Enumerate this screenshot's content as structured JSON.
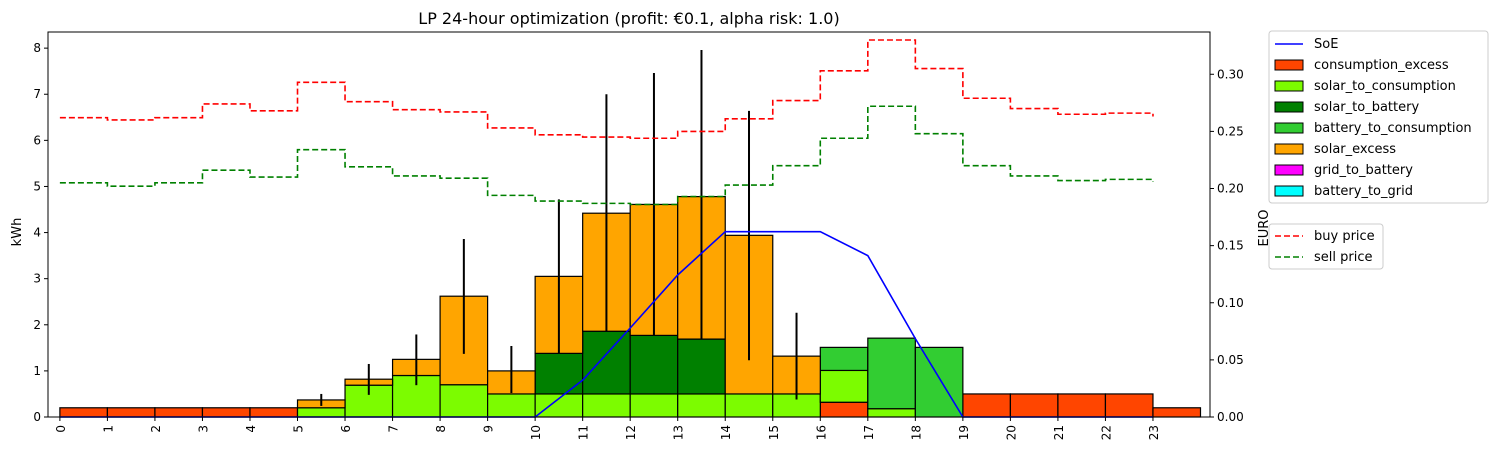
{
  "chart_data": {
    "type": "bar",
    "title": "LP 24-hour optimization (profit: €0.1, alpha risk: 1.0)",
    "xlabel": "",
    "ylabel": "kWh",
    "y2label": "EURO",
    "xlim": [
      -0.25,
      24.2
    ],
    "ylim": [
      0,
      8.35
    ],
    "y2lim": [
      0,
      0.337
    ],
    "x_ticks": [
      "0",
      "1",
      "2",
      "3",
      "4",
      "5",
      "6",
      "7",
      "8",
      "9",
      "10",
      "11",
      "12",
      "13",
      "14",
      "15",
      "16",
      "17",
      "18",
      "19",
      "20",
      "21",
      "22",
      "23"
    ],
    "y_ticks": [
      "0",
      "1",
      "2",
      "3",
      "4",
      "5",
      "6",
      "7",
      "8"
    ],
    "y2_ticks": [
      "0.00",
      "0.05",
      "0.10",
      "0.15",
      "0.20",
      "0.25",
      "0.30"
    ],
    "stacked_series": [
      {
        "name": "consumption_excess",
        "color": "#ff4500",
        "values": [
          0.2,
          0.2,
          0.2,
          0.2,
          0.2,
          0,
          0,
          0,
          0,
          0,
          0,
          0,
          0,
          0,
          0,
          0,
          0.32,
          0,
          0,
          0.5,
          0.5,
          0.5,
          0.5,
          0.2
        ]
      },
      {
        "name": "solar_to_consumption",
        "color": "#7cfc00",
        "values": [
          0,
          0,
          0,
          0,
          0,
          0.2,
          0.69,
          0.9,
          0.7,
          0.5,
          0.5,
          0.5,
          0.5,
          0.5,
          0.5,
          0.5,
          0.69,
          0.18,
          0,
          0,
          0,
          0,
          0,
          0
        ]
      },
      {
        "name": "solar_to_battery",
        "color": "#008000",
        "values": [
          0,
          0,
          0,
          0,
          0,
          0,
          0,
          0,
          0,
          0,
          0.88,
          1.36,
          1.27,
          1.19,
          0,
          0,
          0,
          0,
          0,
          0,
          0,
          0,
          0,
          0
        ]
      },
      {
        "name": "battery_to_consumption",
        "color": "#32cd32",
        "values": [
          0,
          0,
          0,
          0,
          0,
          0,
          0,
          0,
          0,
          0,
          0,
          0,
          0,
          0,
          0,
          0,
          0.5,
          1.53,
          1.51,
          0,
          0,
          0,
          0,
          0
        ]
      },
      {
        "name": "solar_excess",
        "color": "#ffa500",
        "values": [
          0,
          0,
          0,
          0,
          0,
          0.17,
          0.13,
          0.35,
          1.92,
          0.5,
          1.67,
          2.56,
          2.84,
          3.09,
          3.44,
          0.82,
          0,
          0,
          0,
          0,
          0,
          0,
          0,
          0
        ]
      },
      {
        "name": "grid_to_battery",
        "color": "#ff00ff",
        "values": [
          0,
          0,
          0,
          0,
          0,
          0,
          0,
          0,
          0,
          0,
          0,
          0,
          0,
          0,
          0,
          0,
          0,
          0,
          0,
          0,
          0,
          0,
          0,
          0
        ]
      },
      {
        "name": "battery_to_grid",
        "color": "#00ffff",
        "values": [
          0,
          0,
          0,
          0,
          0,
          0,
          0,
          0,
          0,
          0,
          0,
          0,
          0,
          0,
          0,
          0,
          0,
          0,
          0,
          0,
          0,
          0,
          0,
          0
        ]
      }
    ],
    "soe": {
      "name": "SoE",
      "color": "#0000ff",
      "values": [
        0,
        0,
        0,
        0,
        0,
        0,
        0,
        0,
        0,
        0,
        0,
        0.8,
        1.93,
        3.08,
        4.02,
        4.02,
        4.02,
        3.5,
        1.7,
        0,
        0,
        0,
        0,
        0
      ]
    },
    "error_bars": [
      {
        "hour": 5,
        "low": 0.24,
        "high": 0.5
      },
      {
        "hour": 6,
        "low": 0.48,
        "high": 1.15
      },
      {
        "hour": 7,
        "low": 0.69,
        "high": 1.79
      },
      {
        "hour": 8,
        "low": 1.37,
        "high": 3.86
      },
      {
        "hour": 9,
        "low": 0.52,
        "high": 1.54
      },
      {
        "hour": 10,
        "low": 1.38,
        "high": 4.72
      },
      {
        "hour": 11,
        "low": 1.86,
        "high": 7.0
      },
      {
        "hour": 12,
        "low": 1.77,
        "high": 7.46
      },
      {
        "hour": 13,
        "low": 1.69,
        "high": 7.96
      },
      {
        "hour": 14,
        "low": 1.23,
        "high": 6.64
      },
      {
        "hour": 15,
        "low": 0.38,
        "high": 2.26
      }
    ],
    "prices": [
      {
        "name": "buy price",
        "color": "#ff0000",
        "values": [
          0.262,
          0.26,
          0.262,
          0.274,
          0.268,
          0.293,
          0.276,
          0.269,
          0.267,
          0.253,
          0.247,
          0.245,
          0.244,
          0.25,
          0.261,
          0.277,
          0.303,
          0.33,
          0.305,
          0.279,
          0.27,
          0.265,
          0.266,
          0.263
        ]
      },
      {
        "name": "sell price",
        "color": "#008000",
        "values": [
          0.205,
          0.202,
          0.205,
          0.216,
          0.21,
          0.234,
          0.219,
          0.211,
          0.209,
          0.194,
          0.189,
          0.187,
          0.186,
          0.193,
          0.203,
          0.22,
          0.244,
          0.272,
          0.248,
          0.22,
          0.211,
          0.207,
          0.208,
          0.206
        ]
      }
    ],
    "legend_placement": "outside-right"
  }
}
